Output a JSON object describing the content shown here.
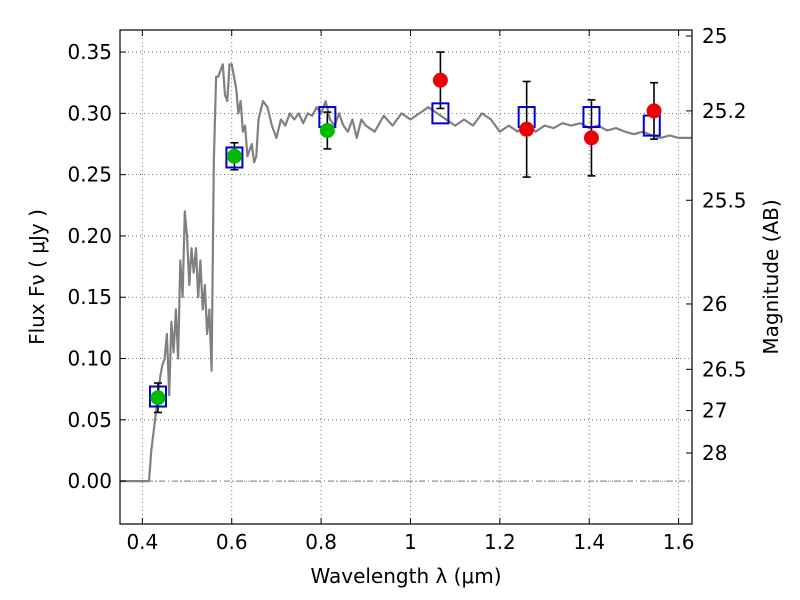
{
  "chart_data": {
    "type": "scatter",
    "xlabel": "Wavelength  λ (μm)",
    "ylabel": "Flux  Fν  ( μJy )",
    "y2label": "Magnitude (AB)",
    "xlim": [
      0.35,
      1.63
    ],
    "ylim": [
      -0.035,
      0.368
    ],
    "grid": true,
    "x_ticks": [
      0.4,
      0.6,
      0.8,
      1.0,
      1.2,
      1.4,
      1.6
    ],
    "x_tick_labels": [
      "0.4",
      "0.6",
      "0.8",
      "1",
      "1.2",
      "1.4",
      "1.6"
    ],
    "y_ticks": [
      0.0,
      0.05,
      0.1,
      0.15,
      0.2,
      0.25,
      0.3,
      0.35
    ],
    "y_tick_labels": [
      "0.00",
      "0.05",
      "0.10",
      "0.15",
      "0.20",
      "0.25",
      "0.30",
      "0.35"
    ],
    "y2_ticks": [
      {
        "label": "25",
        "flux": 0.3631
      },
      {
        "label": "25.2",
        "flux": 0.302
      },
      {
        "label": "25.5",
        "flux": 0.2291
      },
      {
        "label": "26",
        "flux": 0.1445
      },
      {
        "label": "26.5",
        "flux": 0.0912
      },
      {
        "label": "27",
        "flux": 0.0575
      },
      {
        "label": "28",
        "flux": 0.0229
      }
    ],
    "colors": {
      "model": "#808080",
      "model_flux": "#0000cc",
      "detected": "#00bb00",
      "other": "#ee0000",
      "errorbar": "#000000",
      "grid": "#555555"
    },
    "series": [
      {
        "marker": "line",
        "x": [
          0.35,
          0.415,
          0.42,
          0.43,
          0.44,
          0.445,
          0.45,
          0.455,
          0.46,
          0.465,
          0.47,
          0.475,
          0.48,
          0.485,
          0.49,
          0.495,
          0.5,
          0.505,
          0.51,
          0.515,
          0.52,
          0.525,
          0.53,
          0.535,
          0.54,
          0.545,
          0.55,
          0.555,
          0.56,
          0.565,
          0.57,
          0.575,
          0.58,
          0.585,
          0.59,
          0.595,
          0.6,
          0.605,
          0.61,
          0.615,
          0.62,
          0.625,
          0.63,
          0.635,
          0.64,
          0.645,
          0.65,
          0.655,
          0.66,
          0.67,
          0.68,
          0.69,
          0.7,
          0.71,
          0.72,
          0.73,
          0.74,
          0.75,
          0.76,
          0.77,
          0.78,
          0.79,
          0.8,
          0.81,
          0.82,
          0.83,
          0.84,
          0.85,
          0.86,
          0.87,
          0.88,
          0.89,
          0.9,
          0.92,
          0.94,
          0.96,
          0.98,
          1.0,
          1.02,
          1.04,
          1.06,
          1.08,
          1.1,
          1.12,
          1.14,
          1.16,
          1.18,
          1.2,
          1.22,
          1.24,
          1.26,
          1.28,
          1.3,
          1.32,
          1.34,
          1.36,
          1.38,
          1.4,
          1.42,
          1.44,
          1.46,
          1.48,
          1.5,
          1.52,
          1.54,
          1.56,
          1.58,
          1.6,
          1.63
        ],
        "y": [
          0.0,
          0.0,
          0.025,
          0.055,
          0.085,
          0.095,
          0.1,
          0.12,
          0.07,
          0.13,
          0.105,
          0.14,
          0.1,
          0.18,
          0.15,
          0.22,
          0.2,
          0.16,
          0.19,
          0.17,
          0.19,
          0.15,
          0.18,
          0.14,
          0.16,
          0.12,
          0.14,
          0.09,
          0.26,
          0.33,
          0.33,
          0.335,
          0.34,
          0.315,
          0.31,
          0.34,
          0.34,
          0.33,
          0.32,
          0.3,
          0.31,
          0.285,
          0.29,
          0.265,
          0.27,
          0.275,
          0.26,
          0.265,
          0.295,
          0.31,
          0.305,
          0.29,
          0.28,
          0.295,
          0.29,
          0.3,
          0.295,
          0.3,
          0.292,
          0.3,
          0.298,
          0.305,
          0.3,
          0.31,
          0.295,
          0.29,
          0.3,
          0.29,
          0.285,
          0.295,
          0.28,
          0.295,
          0.29,
          0.285,
          0.298,
          0.29,
          0.3,
          0.295,
          0.3,
          0.305,
          0.3,
          0.295,
          0.29,
          0.295,
          0.29,
          0.3,
          0.295,
          0.285,
          0.29,
          0.285,
          0.292,
          0.285,
          0.29,
          0.288,
          0.292,
          0.29,
          0.292,
          0.288,
          0.29,
          0.286,
          0.288,
          0.285,
          0.283,
          0.285,
          0.282,
          0.28,
          0.282,
          0.28,
          0.28
        ]
      },
      {
        "marker": "square",
        "x": [
          0.435,
          0.606,
          0.814,
          1.067,
          1.26,
          1.405,
          1.54
        ],
        "y": [
          0.069,
          0.264,
          0.297,
          0.3,
          0.297,
          0.297,
          0.29
        ]
      },
      {
        "marker": "circle",
        "color_key": "detected",
        "x": [
          0.435,
          0.606,
          0.814
        ],
        "y": [
          0.068,
          0.265,
          0.286
        ],
        "err": [
          0.012,
          0.011,
          0.015
        ]
      },
      {
        "marker": "circle",
        "color_key": "other",
        "x": [
          1.067,
          1.26,
          1.405,
          1.545
        ],
        "y": [
          0.327,
          0.287,
          0.28,
          0.302
        ],
        "err": [
          0.023,
          0.039,
          0.031,
          0.023
        ]
      }
    ]
  }
}
